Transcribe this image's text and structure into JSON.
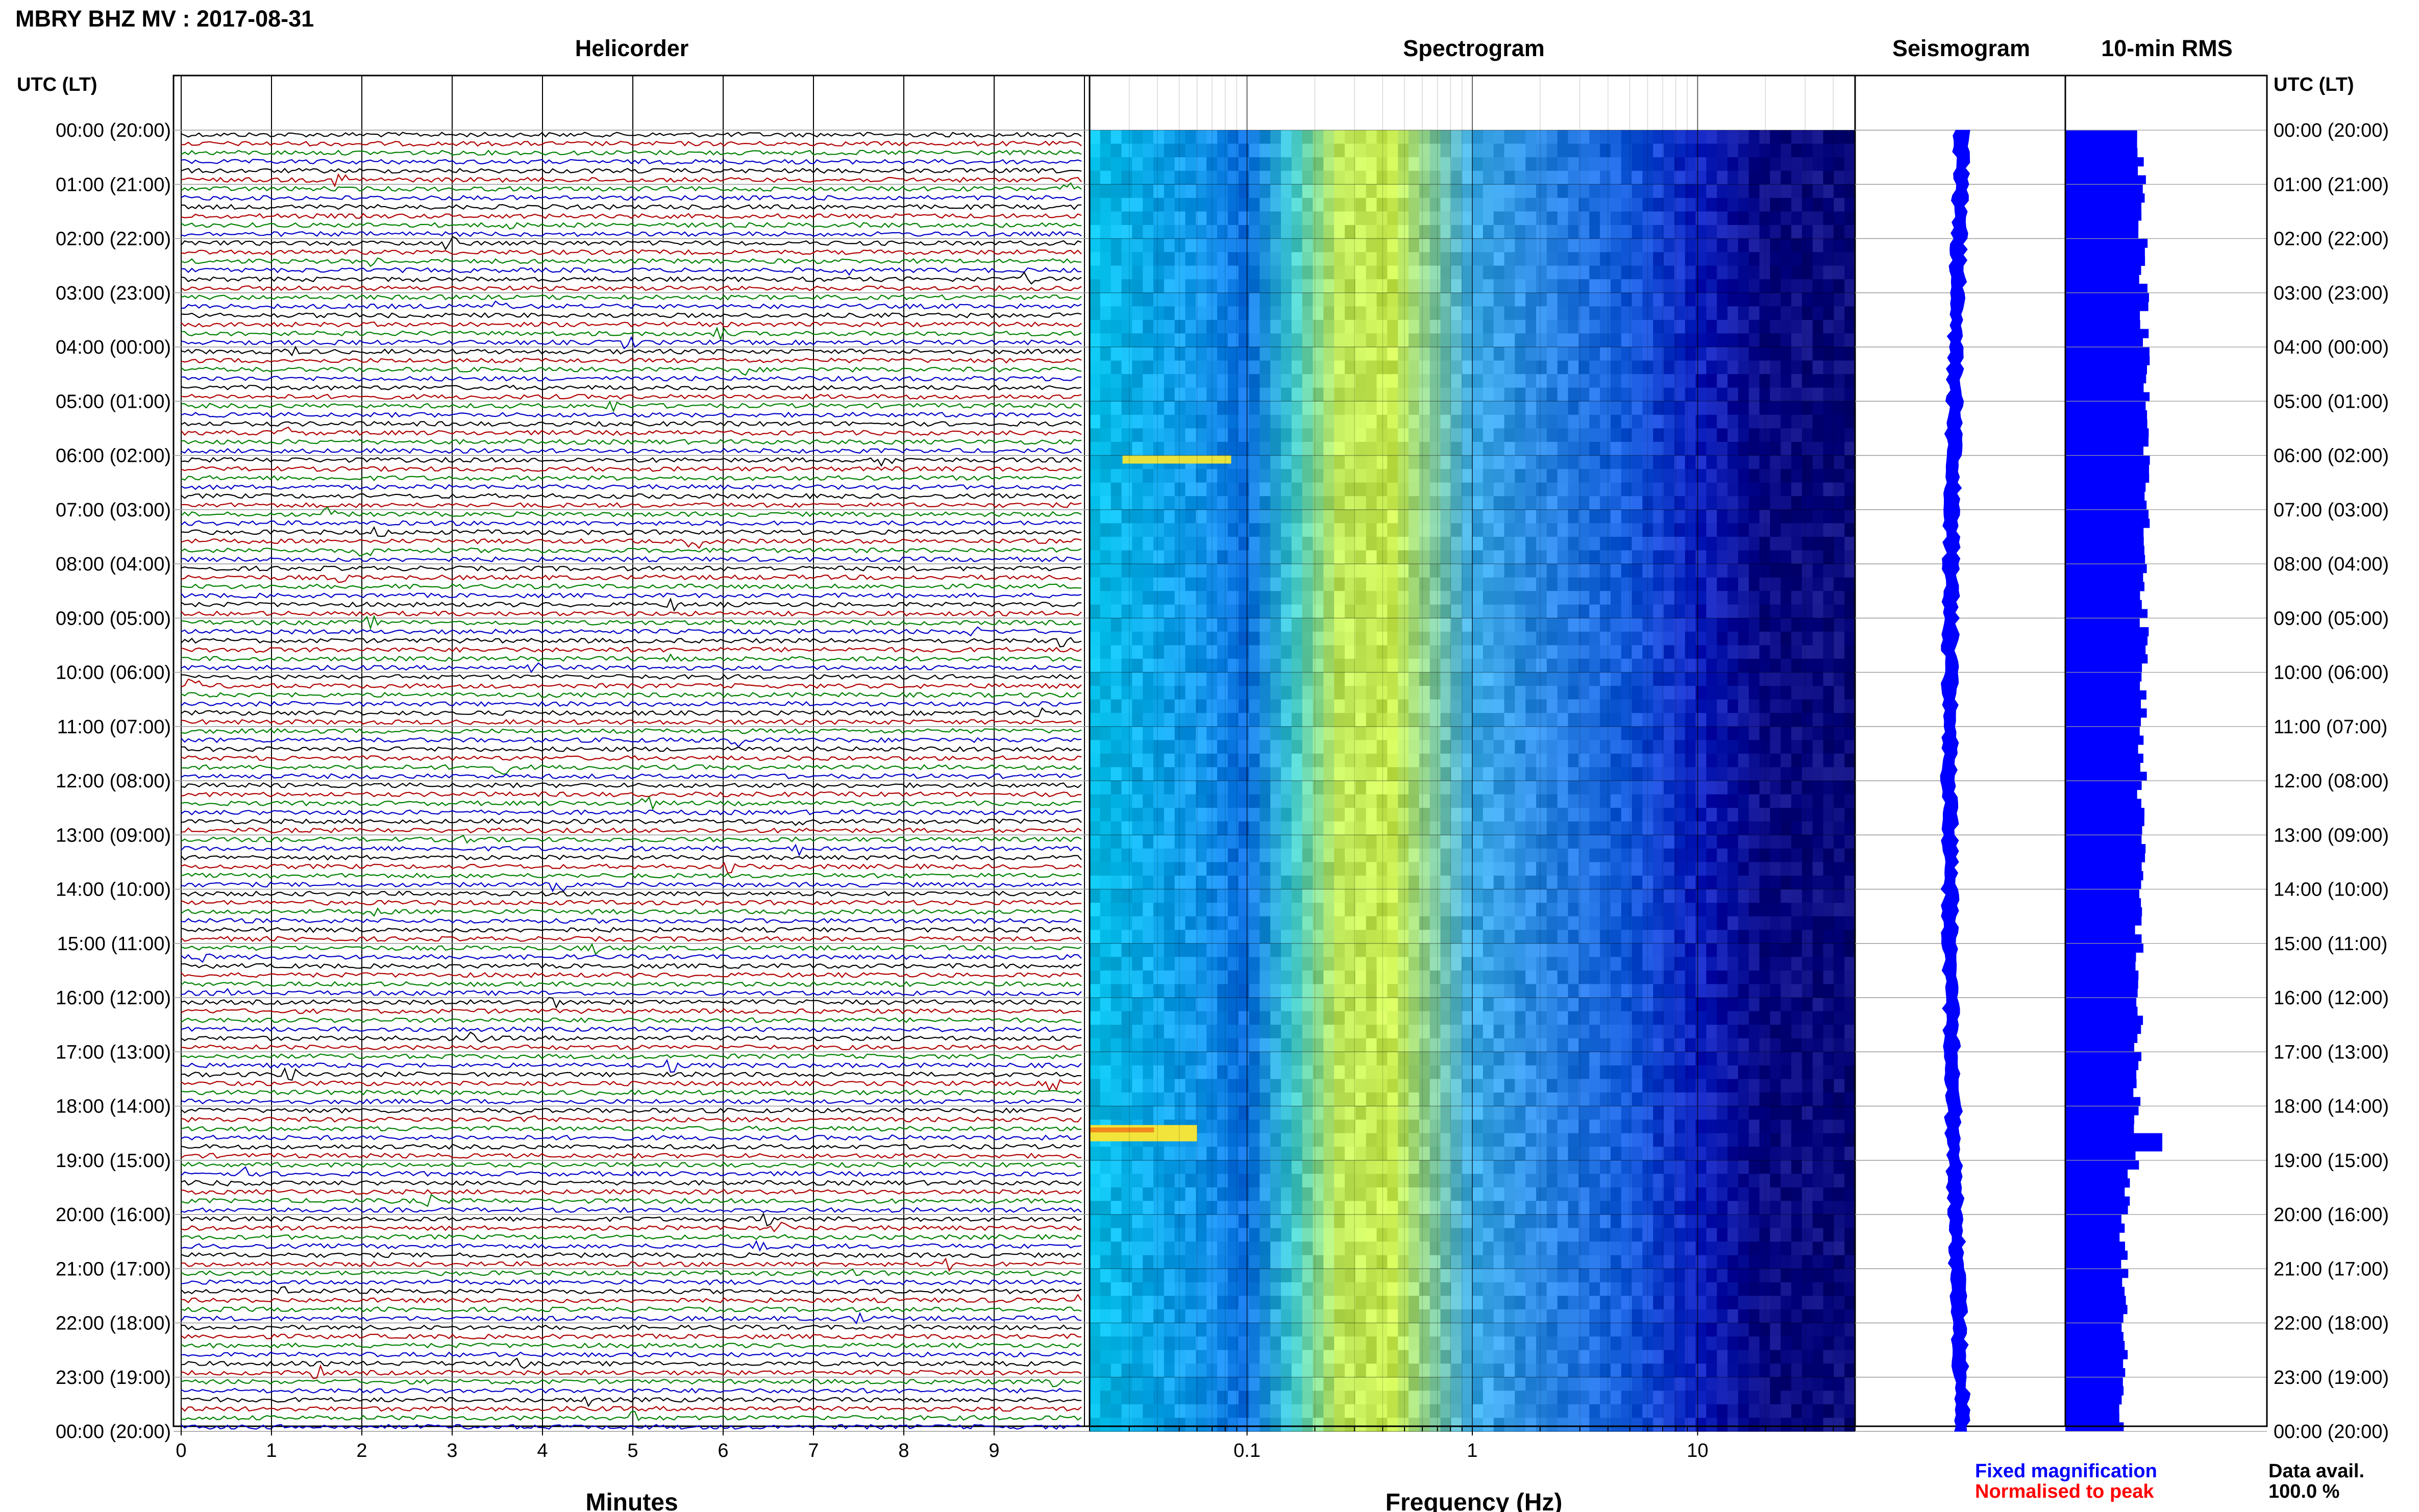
{
  "page": {
    "title": "MBRY BHZ MV : 2017-08-31",
    "panel_titles": {
      "helicorder": "Helicorder",
      "spectrogram": "Spectrogram",
      "seismogram": "Seismogram",
      "rms": "10-min RMS"
    },
    "time_axis_header_left": "UTC (LT)",
    "time_axis_header_right": "UTC (LT)",
    "legend": {
      "fixed": "Fixed magnification",
      "normalised": "Normalised to peak",
      "fixed_color": "#0000ff",
      "normalised_color": "#ff0000"
    },
    "data_avail_label": "Data avail.",
    "data_avail_value": "100.0 %"
  },
  "chart_data": [
    {
      "type": "helicorder",
      "title": "Helicorder",
      "xlabel": "Minutes",
      "x_ticks": [
        "0",
        "1",
        "2",
        "3",
        "4",
        "5",
        "6",
        "7",
        "8",
        "9"
      ],
      "xlim": [
        0,
        10
      ],
      "time_labels": [
        "00:00 (20:00)",
        "01:00 (21:00)",
        "02:00 (22:00)",
        "03:00 (23:00)",
        "04:00 (00:00)",
        "05:00 (01:00)",
        "06:00 (02:00)",
        "07:00 (03:00)",
        "08:00 (04:00)",
        "09:00 (05:00)",
        "10:00 (06:00)",
        "11:00 (07:00)",
        "12:00 (08:00)",
        "13:00 (09:00)",
        "14:00 (10:00)",
        "15:00 (11:00)",
        "16:00 (12:00)",
        "17:00 (13:00)",
        "18:00 (14:00)",
        "19:00 (15:00)",
        "20:00 (16:00)",
        "21:00 (17:00)",
        "22:00 (18:00)",
        "23:00 (19:00)",
        "00:00 (20:00)"
      ],
      "lines_per_hour": 6,
      "trace_colors": [
        "#000000",
        "#b00000",
        "#008000",
        "#0000c8"
      ]
    },
    {
      "type": "heatmap",
      "title": "Spectrogram",
      "xlabel": "Frequency (Hz)",
      "x_scale": "log",
      "xlim": [
        0.02,
        50
      ],
      "x_ticks": [
        "0.1",
        "1",
        "10"
      ],
      "time_range_hours": [
        0,
        24
      ],
      "features": [
        {
          "hour_range": [
            6.0,
            6.15
          ],
          "freq_range": [
            0.028,
            0.085
          ],
          "level": "elevated"
        },
        {
          "hour_range": [
            18.35,
            18.65
          ],
          "freq_range": [
            0.02,
            0.06
          ],
          "level": "high"
        }
      ]
    },
    {
      "type": "line",
      "title": "Seismogram",
      "time_range_hours": [
        0,
        24
      ],
      "color": "#0000ff"
    },
    {
      "type": "bar",
      "title": "10-min RMS",
      "orientation": "horizontal",
      "time_range_hours": [
        0,
        24
      ],
      "color": "#0000ff",
      "peak_hour": 18.6
    }
  ]
}
